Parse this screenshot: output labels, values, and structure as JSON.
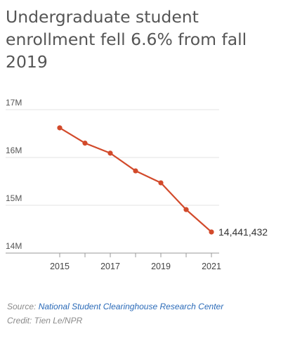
{
  "title": "Undergraduate student enrollment fell 6.6% from fall 2019",
  "source": {
    "label": "Source:",
    "link_text": "National Student Clearinghouse Research Center"
  },
  "credit": "Credit: Tien Le/NPR",
  "colors": {
    "line": "#d24a2b",
    "grid": "#e3e3e3",
    "text": "#555555",
    "link": "#2a6ab8"
  },
  "chart_data": {
    "type": "line",
    "title": "Undergraduate student enrollment fell 6.6% from fall 2019",
    "x": [
      2015,
      2016,
      2017,
      2018,
      2019,
      2020,
      2021
    ],
    "values": [
      16620000,
      16300000,
      16090000,
      15720000,
      15470000,
      14910000,
      14441432
    ],
    "ylim": [
      14000000,
      17000000
    ],
    "xlim": [
      2015,
      2021
    ],
    "y_ticks": [
      14000000,
      15000000,
      16000000,
      17000000
    ],
    "y_tick_labels": [
      "14M",
      "15M",
      "16M",
      "17M"
    ],
    "x_ticks": [
      2015,
      2017,
      2019,
      2021
    ],
    "x_tick_labels": [
      "2015",
      "2017",
      "2019",
      "2021"
    ],
    "end_label": "14,441,432",
    "grid": true,
    "legend": "none"
  }
}
